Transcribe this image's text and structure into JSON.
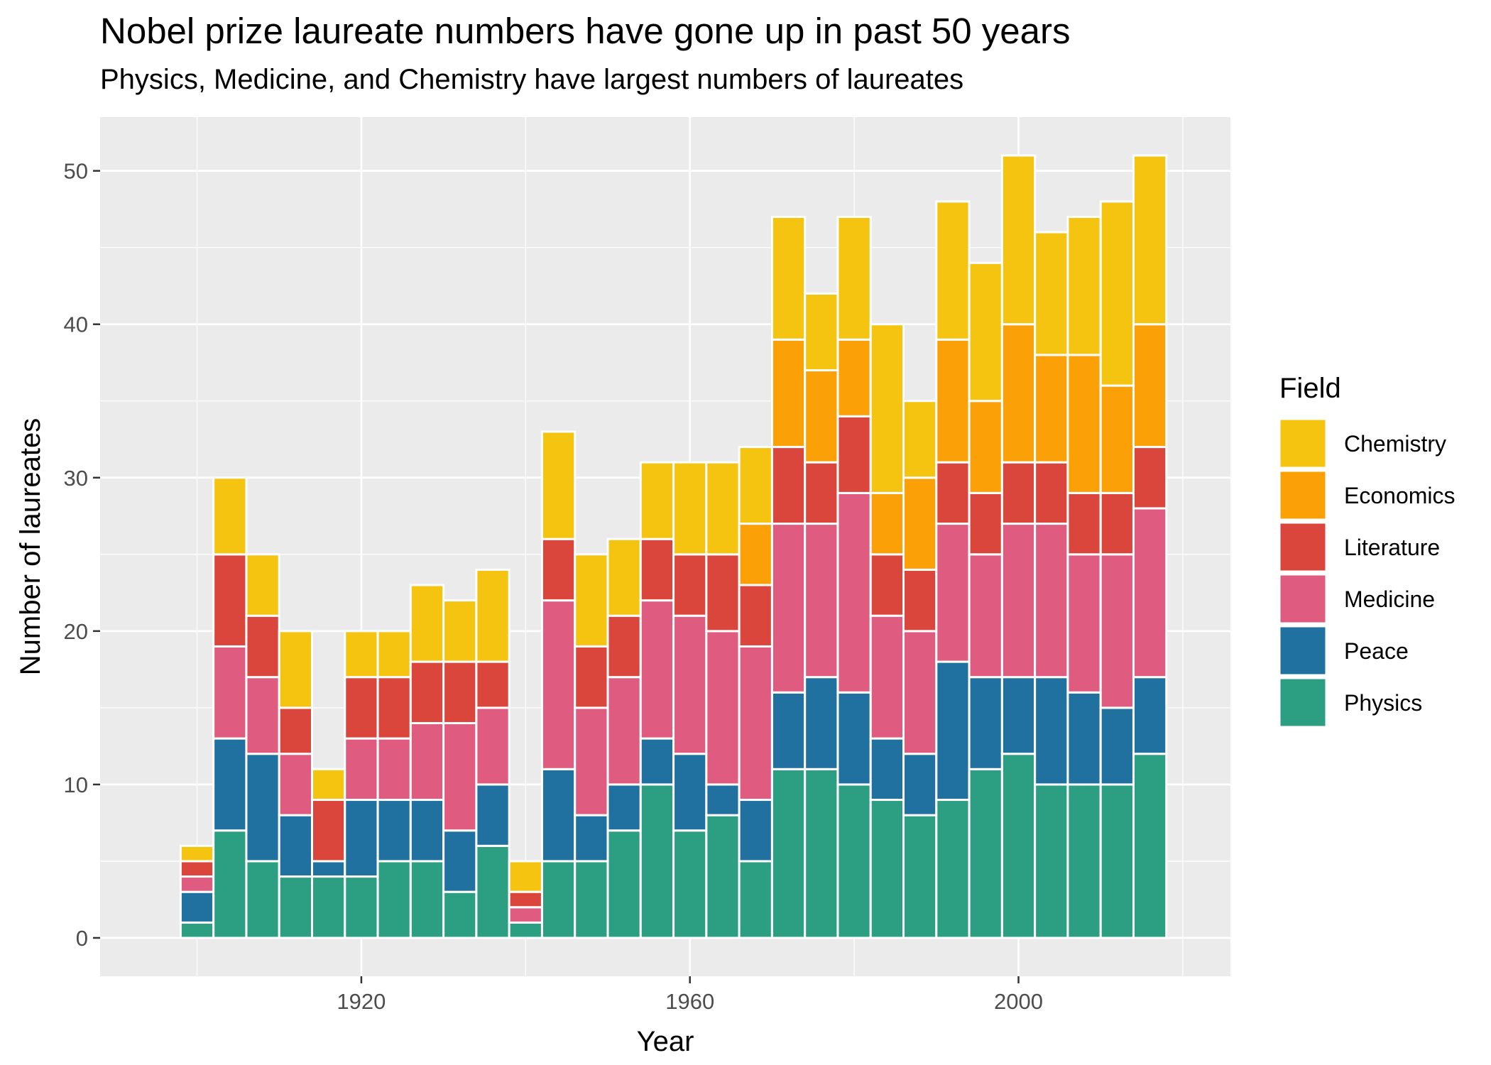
{
  "chart_data": {
    "type": "bar",
    "stacked": true,
    "title": "Nobel prize laureate numbers have gone up in past 50 years",
    "subtitle": "Physics, Medicine, and Chemistry have largest numbers of laureates",
    "xlabel": "Year",
    "ylabel": "Number of laureates",
    "xlim": [
      1888.2,
      2025.8
    ],
    "ylim": [
      -2.5,
      53.5
    ],
    "x_ticks": [
      1920,
      1960,
      2000
    ],
    "y_ticks": [
      0,
      10,
      20,
      30,
      40,
      50
    ],
    "grid": true,
    "legend_title": "Field",
    "legend_position": "right",
    "categories": [
      1900,
      1904,
      1908,
      1912,
      1916,
      1920,
      1924,
      1928,
      1932,
      1936,
      1940,
      1944,
      1948,
      1952,
      1956,
      1960,
      1964,
      1968,
      1972,
      1976,
      1980,
      1984,
      1988,
      1992,
      1996,
      2000,
      2004,
      2008,
      2012,
      2016
    ],
    "series": [
      {
        "name": "Chemistry",
        "color": "#F5C410",
        "values": [
          1,
          5,
          4,
          5,
          2,
          3,
          3,
          5,
          4,
          6,
          2,
          7,
          6,
          5,
          5,
          6,
          6,
          5,
          8,
          5,
          8,
          11,
          5,
          9,
          9,
          11,
          8,
          9,
          12,
          11
        ]
      },
      {
        "name": "Economics",
        "color": "#FCA007",
        "values": [
          0,
          0,
          0,
          0,
          0,
          0,
          0,
          0,
          0,
          0,
          0,
          0,
          0,
          0,
          0,
          0,
          0,
          4,
          7,
          6,
          5,
          4,
          6,
          8,
          6,
          9,
          7,
          9,
          7,
          8
        ]
      },
      {
        "name": "Literature",
        "color": "#DA453C",
        "values": [
          1,
          6,
          4,
          3,
          4,
          4,
          4,
          4,
          4,
          3,
          1,
          4,
          4,
          4,
          4,
          4,
          5,
          4,
          5,
          4,
          5,
          4,
          4,
          4,
          4,
          4,
          4,
          4,
          4,
          4
        ]
      },
      {
        "name": "Medicine",
        "color": "#DF5B80",
        "values": [
          1,
          6,
          5,
          4,
          0,
          4,
          4,
          5,
          7,
          5,
          1,
          11,
          7,
          7,
          9,
          9,
          10,
          10,
          11,
          10,
          13,
          8,
          8,
          9,
          8,
          10,
          10,
          9,
          10,
          11
        ]
      },
      {
        "name": "Peace",
        "color": "#20719F",
        "values": [
          2,
          6,
          7,
          4,
          1,
          5,
          4,
          4,
          4,
          4,
          0,
          6,
          3,
          3,
          3,
          5,
          2,
          4,
          5,
          6,
          6,
          4,
          4,
          9,
          6,
          5,
          7,
          6,
          5,
          5
        ]
      },
      {
        "name": "Physics",
        "color": "#2C9F83",
        "values": [
          1,
          7,
          5,
          4,
          4,
          4,
          5,
          5,
          3,
          6,
          1,
          5,
          5,
          7,
          10,
          7,
          8,
          5,
          11,
          11,
          10,
          9,
          8,
          9,
          11,
          12,
          10,
          10,
          10,
          12
        ]
      }
    ]
  }
}
